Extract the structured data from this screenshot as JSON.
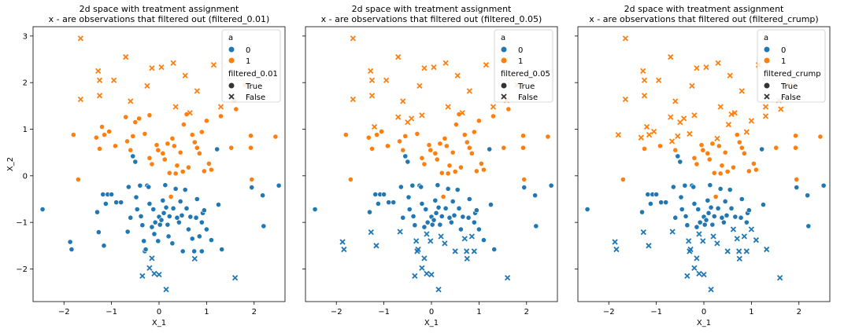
{
  "chart_data": [
    {
      "type": "scatter",
      "title_line1": "2d space with treatment assignment",
      "title_line2": "x - are observations that filtered out (filtered_0.01)",
      "xlabel": "X_1",
      "ylabel": "X_2",
      "xlim": [
        -2.65,
        2.65
      ],
      "ylim": [
        -2.7,
        3.2
      ],
      "xticks": [
        "−2",
        "−1",
        "0",
        "1",
        "2"
      ],
      "xtick_values": [
        -2,
        -1,
        0,
        1,
        2
      ],
      "yticks": [
        "−2",
        "−1",
        "0",
        "1",
        "2",
        "3"
      ],
      "ytick_values": [
        -2,
        -1,
        0,
        1,
        2,
        3
      ],
      "legend": {
        "hue_title": "a",
        "hue_labels": [
          "0",
          "1"
        ],
        "style_title": "filtered_0.01",
        "style_labels": [
          "True",
          "False"
        ],
        "placement": "upper right"
      },
      "filter_lines": [],
      "filter_boxes": [
        [
          -2.0,
          -2.2,
          1.1,
          -1.8
        ]
      ]
    },
    {
      "type": "scatter",
      "title_line1": "2d space with treatment assignment",
      "title_line2": "x - are observations that filtered out (filtered_0.05)",
      "xlabel": "X_1",
      "ylabel": "",
      "xlim": [
        -2.65,
        2.65
      ],
      "ylim": [
        -2.7,
        3.2
      ],
      "xticks": [
        "−2",
        "−1",
        "0",
        "1",
        "2"
      ],
      "xtick_values": [
        -2,
        -1,
        0,
        1,
        2
      ],
      "yticks": [],
      "ytick_values": [],
      "legend": {
        "hue_title": "a",
        "hue_labels": [
          "0",
          "1"
        ],
        "style_title": "filtered_0.05",
        "style_labels": [
          "True",
          "False"
        ],
        "placement": "upper right"
      },
      "filter_lines": [
        "y>1.5",
        "x<0.1&y>1.0",
        "y<-1.15&x<1.0",
        "x<-1.5&y<-1.3"
      ],
      "filter_boxes": [
        [
          -2.0,
          -2.2,
          1.1,
          -1.8
        ]
      ]
    },
    {
      "type": "scatter",
      "title_line1": "2d space with treatment assignment",
      "title_line2": "x - are observations that filtered out (filtered_crump)",
      "xlabel": "X_1",
      "ylabel": "",
      "xlim": [
        -2.65,
        2.65
      ],
      "ylim": [
        -2.7,
        3.2
      ],
      "xticks": [
        "−2",
        "−1",
        "0",
        "1",
        "2"
      ],
      "xtick_values": [
        -2,
        -1,
        0,
        1,
        2
      ],
      "yticks": [],
      "ytick_values": [],
      "legend": {
        "hue_title": "a",
        "hue_labels": [
          "0",
          "1"
        ],
        "style_title": "filtered_crump",
        "style_labels": [
          "True",
          "False"
        ],
        "placement": "upper right"
      },
      "filter_lines": [
        "y>0.9",
        "x<0.3&y>0.7",
        "y<-1.1",
        "x<-1.4&y<-1.2"
      ],
      "filter_boxes": []
    }
  ],
  "points": {
    "a0": [
      [
        -2.45,
        -0.72
      ],
      [
        -1.87,
        -1.42
      ],
      [
        -1.84,
        -1.58
      ],
      [
        -1.3,
        -0.78
      ],
      [
        -1.27,
        -1.21
      ],
      [
        -1.18,
        -0.4
      ],
      [
        -1.16,
        -1.5
      ],
      [
        -1.08,
        -0.4
      ],
      [
        -1.0,
        -0.4
      ],
      [
        -0.8,
        -0.57
      ],
      [
        -0.66,
        -1.2
      ],
      [
        -0.64,
        -0.24
      ],
      [
        -0.6,
        -0.9
      ],
      [
        -0.55,
        0.42
      ],
      [
        -0.5,
        0.3
      ],
      [
        -0.48,
        -0.46
      ],
      [
        -0.46,
        -0.72
      ],
      [
        -0.4,
        -0.21
      ],
      [
        -0.38,
        -0.87
      ],
      [
        -0.35,
        -1.06
      ],
      [
        -0.32,
        -1.4
      ],
      [
        -0.3,
        -1.62
      ],
      [
        -0.28,
        -1.58
      ],
      [
        -0.25,
        -0.21
      ],
      [
        -0.22,
        -0.24
      ],
      [
        -0.2,
        -0.6
      ],
      [
        -0.15,
        -1.1
      ],
      [
        -0.12,
        -0.72
      ],
      [
        -0.1,
        -1.25
      ],
      [
        -0.08,
        -1.0
      ],
      [
        -0.02,
        -1.4
      ],
      [
        0.0,
        -0.88
      ],
      [
        0.02,
        -1.05
      ],
      [
        0.05,
        -0.95
      ],
      [
        0.08,
        -0.53
      ],
      [
        0.1,
        -0.8
      ],
      [
        0.13,
        -0.2
      ],
      [
        0.15,
        -0.68
      ],
      [
        0.18,
        -1.05
      ],
      [
        0.2,
        -1.3
      ],
      [
        0.22,
        -0.87
      ],
      [
        0.25,
        -0.45
      ],
      [
        0.28,
        -1.45
      ],
      [
        0.3,
        -0.7
      ],
      [
        0.35,
        -0.28
      ],
      [
        0.38,
        -0.9
      ],
      [
        0.42,
        -1.0
      ],
      [
        0.45,
        -0.55
      ],
      [
        0.48,
        -0.85
      ],
      [
        0.5,
        -1.62
      ],
      [
        0.55,
        -0.3
      ],
      [
        0.58,
        -0.7
      ],
      [
        0.62,
        -1.15
      ],
      [
        0.66,
        -0.88
      ],
      [
        0.7,
        -1.35
      ],
      [
        0.74,
        -1.62
      ],
      [
        0.78,
        -0.9
      ],
      [
        0.8,
        -0.5
      ],
      [
        0.85,
        -1.3
      ],
      [
        0.9,
        -1.0
      ],
      [
        0.92,
        -0.8
      ],
      [
        0.95,
        -0.74
      ],
      [
        1.0,
        -1.15
      ],
      [
        1.1,
        -1.38
      ],
      [
        1.25,
        -0.62
      ],
      [
        1.32,
        -1.58
      ],
      [
        1.22,
        0.57
      ],
      [
        1.95,
        -0.25
      ],
      [
        2.18,
        -0.42
      ],
      [
        2.2,
        -1.08
      ],
      [
        2.52,
        -0.21
      ],
      [
        0.9,
        -1.62
      ],
      [
        -0.9,
        -0.57
      ],
      [
        -1.12,
        -0.6
      ]
    ],
    "a1": [
      [
        -1.8,
        0.88
      ],
      [
        -1.7,
        -0.08
      ],
      [
        -1.32,
        0.82
      ],
      [
        -1.25,
        0.58
      ],
      [
        -1.2,
        1.05
      ],
      [
        -1.15,
        0.88
      ],
      [
        -1.05,
        0.95
      ],
      [
        -0.92,
        0.64
      ],
      [
        -0.7,
        1.26
      ],
      [
        -0.67,
        0.74
      ],
      [
        -0.55,
        0.85
      ],
      [
        -0.5,
        1.15
      ],
      [
        -0.42,
        1.23
      ],
      [
        -0.3,
        0.9
      ],
      [
        -0.2,
        0.38
      ],
      [
        -0.15,
        0.25
      ],
      [
        -0.05,
        0.66
      ],
      [
        -0.02,
        0.55
      ],
      [
        0.08,
        0.48
      ],
      [
        0.12,
        0.35
      ],
      [
        0.18,
        0.69
      ],
      [
        0.22,
        0.06
      ],
      [
        0.28,
        0.8
      ],
      [
        0.32,
        0.64
      ],
      [
        0.38,
        0.22
      ],
      [
        0.45,
        0.5
      ],
      [
        0.5,
        0.09
      ],
      [
        0.52,
        1.1
      ],
      [
        0.58,
        1.32
      ],
      [
        0.62,
        0.18
      ],
      [
        0.7,
        0.88
      ],
      [
        0.75,
        0.72
      ],
      [
        0.8,
        0.6
      ],
      [
        0.85,
        0.48
      ],
      [
        0.9,
        0.94
      ],
      [
        0.95,
        0.1
      ],
      [
        1.0,
        1.18
      ],
      [
        1.05,
        0.26
      ],
      [
        1.1,
        0.13
      ],
      [
        1.3,
        1.28
      ],
      [
        1.52,
        0.6
      ],
      [
        1.58,
        1.62
      ],
      [
        1.62,
        1.43
      ],
      [
        1.93,
        0.6
      ],
      [
        1.93,
        0.86
      ],
      [
        1.95,
        -0.08
      ],
      [
        2.45,
        0.84
      ],
      [
        -0.2,
        1.3
      ],
      [
        0.25,
        -0.45
      ],
      [
        0.35,
        0.05
      ],
      [
        -0.6,
        0.55
      ],
      [
        1.8,
        1.95
      ]
    ],
    "a0_x": [
      [
        -0.35,
        -2.15
      ],
      [
        -0.2,
        -1.98
      ],
      [
        -0.15,
        -1.77
      ],
      [
        -0.1,
        -2.1
      ],
      [
        0.0,
        -2.12
      ],
      [
        0.15,
        -2.44
      ],
      [
        0.75,
        -1.78
      ],
      [
        1.6,
        -2.19
      ]
    ],
    "a1_x": [
      [
        -1.65,
        2.95
      ],
      [
        -0.7,
        2.55
      ],
      [
        -0.15,
        2.31
      ],
      [
        0.05,
        2.33
      ],
      [
        1.15,
        2.38
      ],
      [
        -1.28,
        2.25
      ],
      [
        -1.25,
        2.05
      ],
      [
        -1.25,
        1.72
      ],
      [
        -0.6,
        1.6
      ],
      [
        -1.65,
        1.64
      ],
      [
        -0.25,
        1.93
      ],
      [
        0.65,
        1.35
      ],
      [
        1.3,
        1.48
      ],
      [
        0.35,
        1.48
      ],
      [
        -0.95,
        2.05
      ],
      [
        0.55,
        2.15
      ],
      [
        0.8,
        1.82
      ],
      [
        0.3,
        2.42
      ]
    ]
  },
  "colors": {
    "a0": "#1f77b4",
    "a1": "#ff7f0e",
    "axis": "#000000"
  }
}
